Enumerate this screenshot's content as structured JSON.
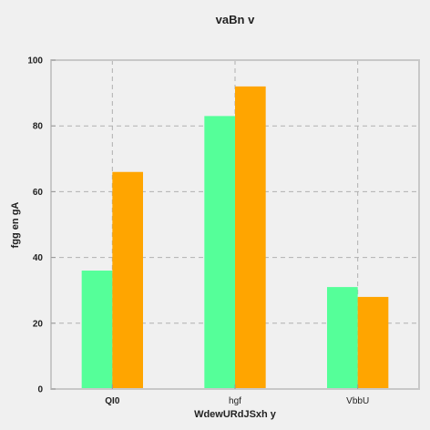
{
  "chart_data": {
    "type": "bar",
    "title": "vaBn v",
    "xlabel": "WdewURdJSxh y",
    "ylabel": "fgg en gA",
    "categories": [
      "QI0",
      "hgf",
      "VbbU"
    ],
    "series": [
      {
        "values": [
          36,
          83,
          31
        ],
        "color": "#55ff99"
      },
      {
        "values": [
          66,
          92,
          28
        ],
        "color": "#ffa500"
      }
    ],
    "ylim": [
      0,
      100
    ],
    "yticks": [
      0,
      20,
      40,
      60,
      80,
      100
    ],
    "grid": true,
    "background": "#f0f0f0",
    "axes_background": "#f0f0f0"
  }
}
